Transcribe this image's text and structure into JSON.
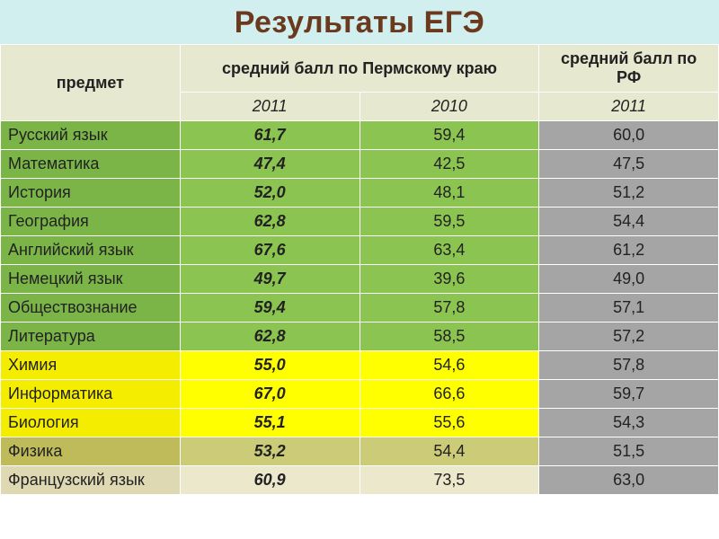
{
  "title": "Результаты ЕГЭ",
  "title_color": "#6b3a1e",
  "title_bg": "#d1efef",
  "header_bg": "#e6e8cf",
  "colors": {
    "green_subject": "#7bb547",
    "green_cell": "#8cc452",
    "yellow_subject": "#f5ed00",
    "yellow_cell": "#ffff00",
    "olive_subject": "#bfbb5b",
    "olive_cell": "#cccb77",
    "beige_subject": "#ded9b2",
    "beige_cell": "#ebe8cc",
    "gray_rf": "#a5a5a5",
    "text": "#222222",
    "border": "#ffffff"
  },
  "columns": {
    "subject": "предмет",
    "perm": "средний балл по Пермскому краю",
    "rf": "средний балл по РФ",
    "year2011": "2011",
    "year2010": "2010",
    "year2011rf": "2011"
  },
  "rows": [
    {
      "subject": "Русский язык",
      "v2011": "61,7",
      "v2010": "59,4",
      "rf": "60,0",
      "band": "green"
    },
    {
      "subject": "Математика",
      "v2011": "47,4",
      "v2010": "42,5",
      "rf": "47,5",
      "band": "green"
    },
    {
      "subject": "История",
      "v2011": "52,0",
      "v2010": "48,1",
      "rf": "51,2",
      "band": "green"
    },
    {
      "subject": "География",
      "v2011": "62,8",
      "v2010": "59,5",
      "rf": "54,4",
      "band": "green"
    },
    {
      "subject": "Английский язык",
      "v2011": "67,6",
      "v2010": "63,4",
      "rf": "61,2",
      "band": "green"
    },
    {
      "subject": "Немецкий язык",
      "v2011": "49,7",
      "v2010": "39,6",
      "rf": "49,0",
      "band": "green"
    },
    {
      "subject": "Обществознание",
      "v2011": "59,4",
      "v2010": "57,8",
      "rf": "57,1",
      "band": "green"
    },
    {
      "subject": "Литература",
      "v2011": "62,8",
      "v2010": "58,5",
      "rf": "57,2",
      "band": "green"
    },
    {
      "subject": "Химия",
      "v2011": "55,0",
      "v2010": "54,6",
      "rf": "57,8",
      "band": "yellow"
    },
    {
      "subject": "Информатика",
      "v2011": "67,0",
      "v2010": "66,6",
      "rf": "59,7",
      "band": "yellow"
    },
    {
      "subject": "Биология",
      "v2011": "55,1",
      "v2010": "55,6",
      "rf": "54,3",
      "band": "yellow"
    },
    {
      "subject": "Физика",
      "v2011": "53,2",
      "v2010": "54,4",
      "rf": "51,5",
      "band": "olive"
    },
    {
      "subject": "Французский язык",
      "v2011": "60,9",
      "v2010": "73,5",
      "rf": "63,0",
      "band": "beige"
    }
  ]
}
